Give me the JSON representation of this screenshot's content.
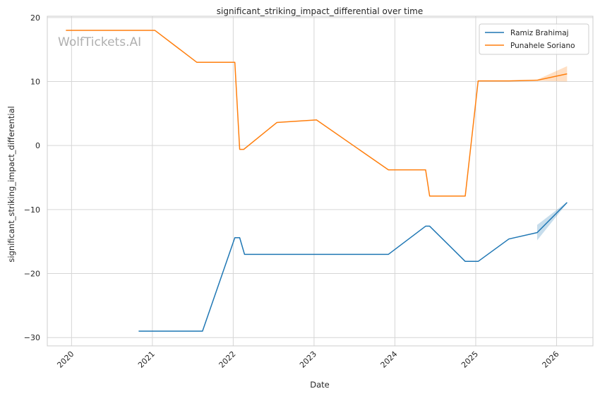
{
  "chart_data": {
    "type": "line",
    "title": "significant_striking_impact_differential over time",
    "xlabel": "Date",
    "ylabel": "significant_striking_impact_differential",
    "watermark": "WolfTickets.AI",
    "xlim": [
      2019.7,
      2026.45
    ],
    "ylim": [
      -31.3,
      20.2
    ],
    "x_ticks": [
      2020,
      2021,
      2022,
      2023,
      2024,
      2025,
      2026
    ],
    "x_tick_labels": [
      "2020",
      "2021",
      "2022",
      "2023",
      "2024",
      "2025",
      "2026"
    ],
    "y_ticks": [
      -30,
      -20,
      -10,
      0,
      10,
      20
    ],
    "y_tick_labels": [
      "−30",
      "−20",
      "−10",
      "0",
      "10",
      "20"
    ],
    "grid": true,
    "legend_position": "top-right",
    "series": [
      {
        "name": "Ramiz Brahimaj",
        "color": "#1f77b4",
        "x": [
          2020.83,
          2021.62,
          2022.02,
          2022.08,
          2022.14,
          2023.92,
          2024.38,
          2024.43,
          2024.87,
          2025.03,
          2025.41,
          2025.76,
          2026.13
        ],
        "y": [
          -29.0,
          -29.0,
          -14.4,
          -14.4,
          -17.0,
          -17.0,
          -12.6,
          -12.6,
          -18.1,
          -18.1,
          -14.6,
          -13.6,
          -8.9
        ],
        "band": {
          "x": [
            2025.76,
            2026.13
          ],
          "lower": [
            -14.8,
            -9.0
          ],
          "upper": [
            -12.4,
            -8.8
          ]
        }
      },
      {
        "name": "Punahele Soriano",
        "color": "#ff7f0e",
        "x": [
          2019.93,
          2021.03,
          2021.55,
          2022.02,
          2022.08,
          2022.13,
          2022.54,
          2023.03,
          2023.92,
          2024.38,
          2024.43,
          2024.87,
          2025.03,
          2025.41,
          2025.76,
          2026.13
        ],
        "y": [
          18.0,
          18.0,
          13.0,
          13.0,
          -0.6,
          -0.6,
          3.6,
          4.0,
          -3.8,
          -3.8,
          -7.9,
          -7.9,
          10.1,
          10.1,
          10.2,
          11.2
        ],
        "band": {
          "x": [
            2025.76,
            2026.13
          ],
          "lower": [
            10.1,
            10.0
          ],
          "upper": [
            10.3,
            12.4
          ]
        }
      }
    ]
  }
}
